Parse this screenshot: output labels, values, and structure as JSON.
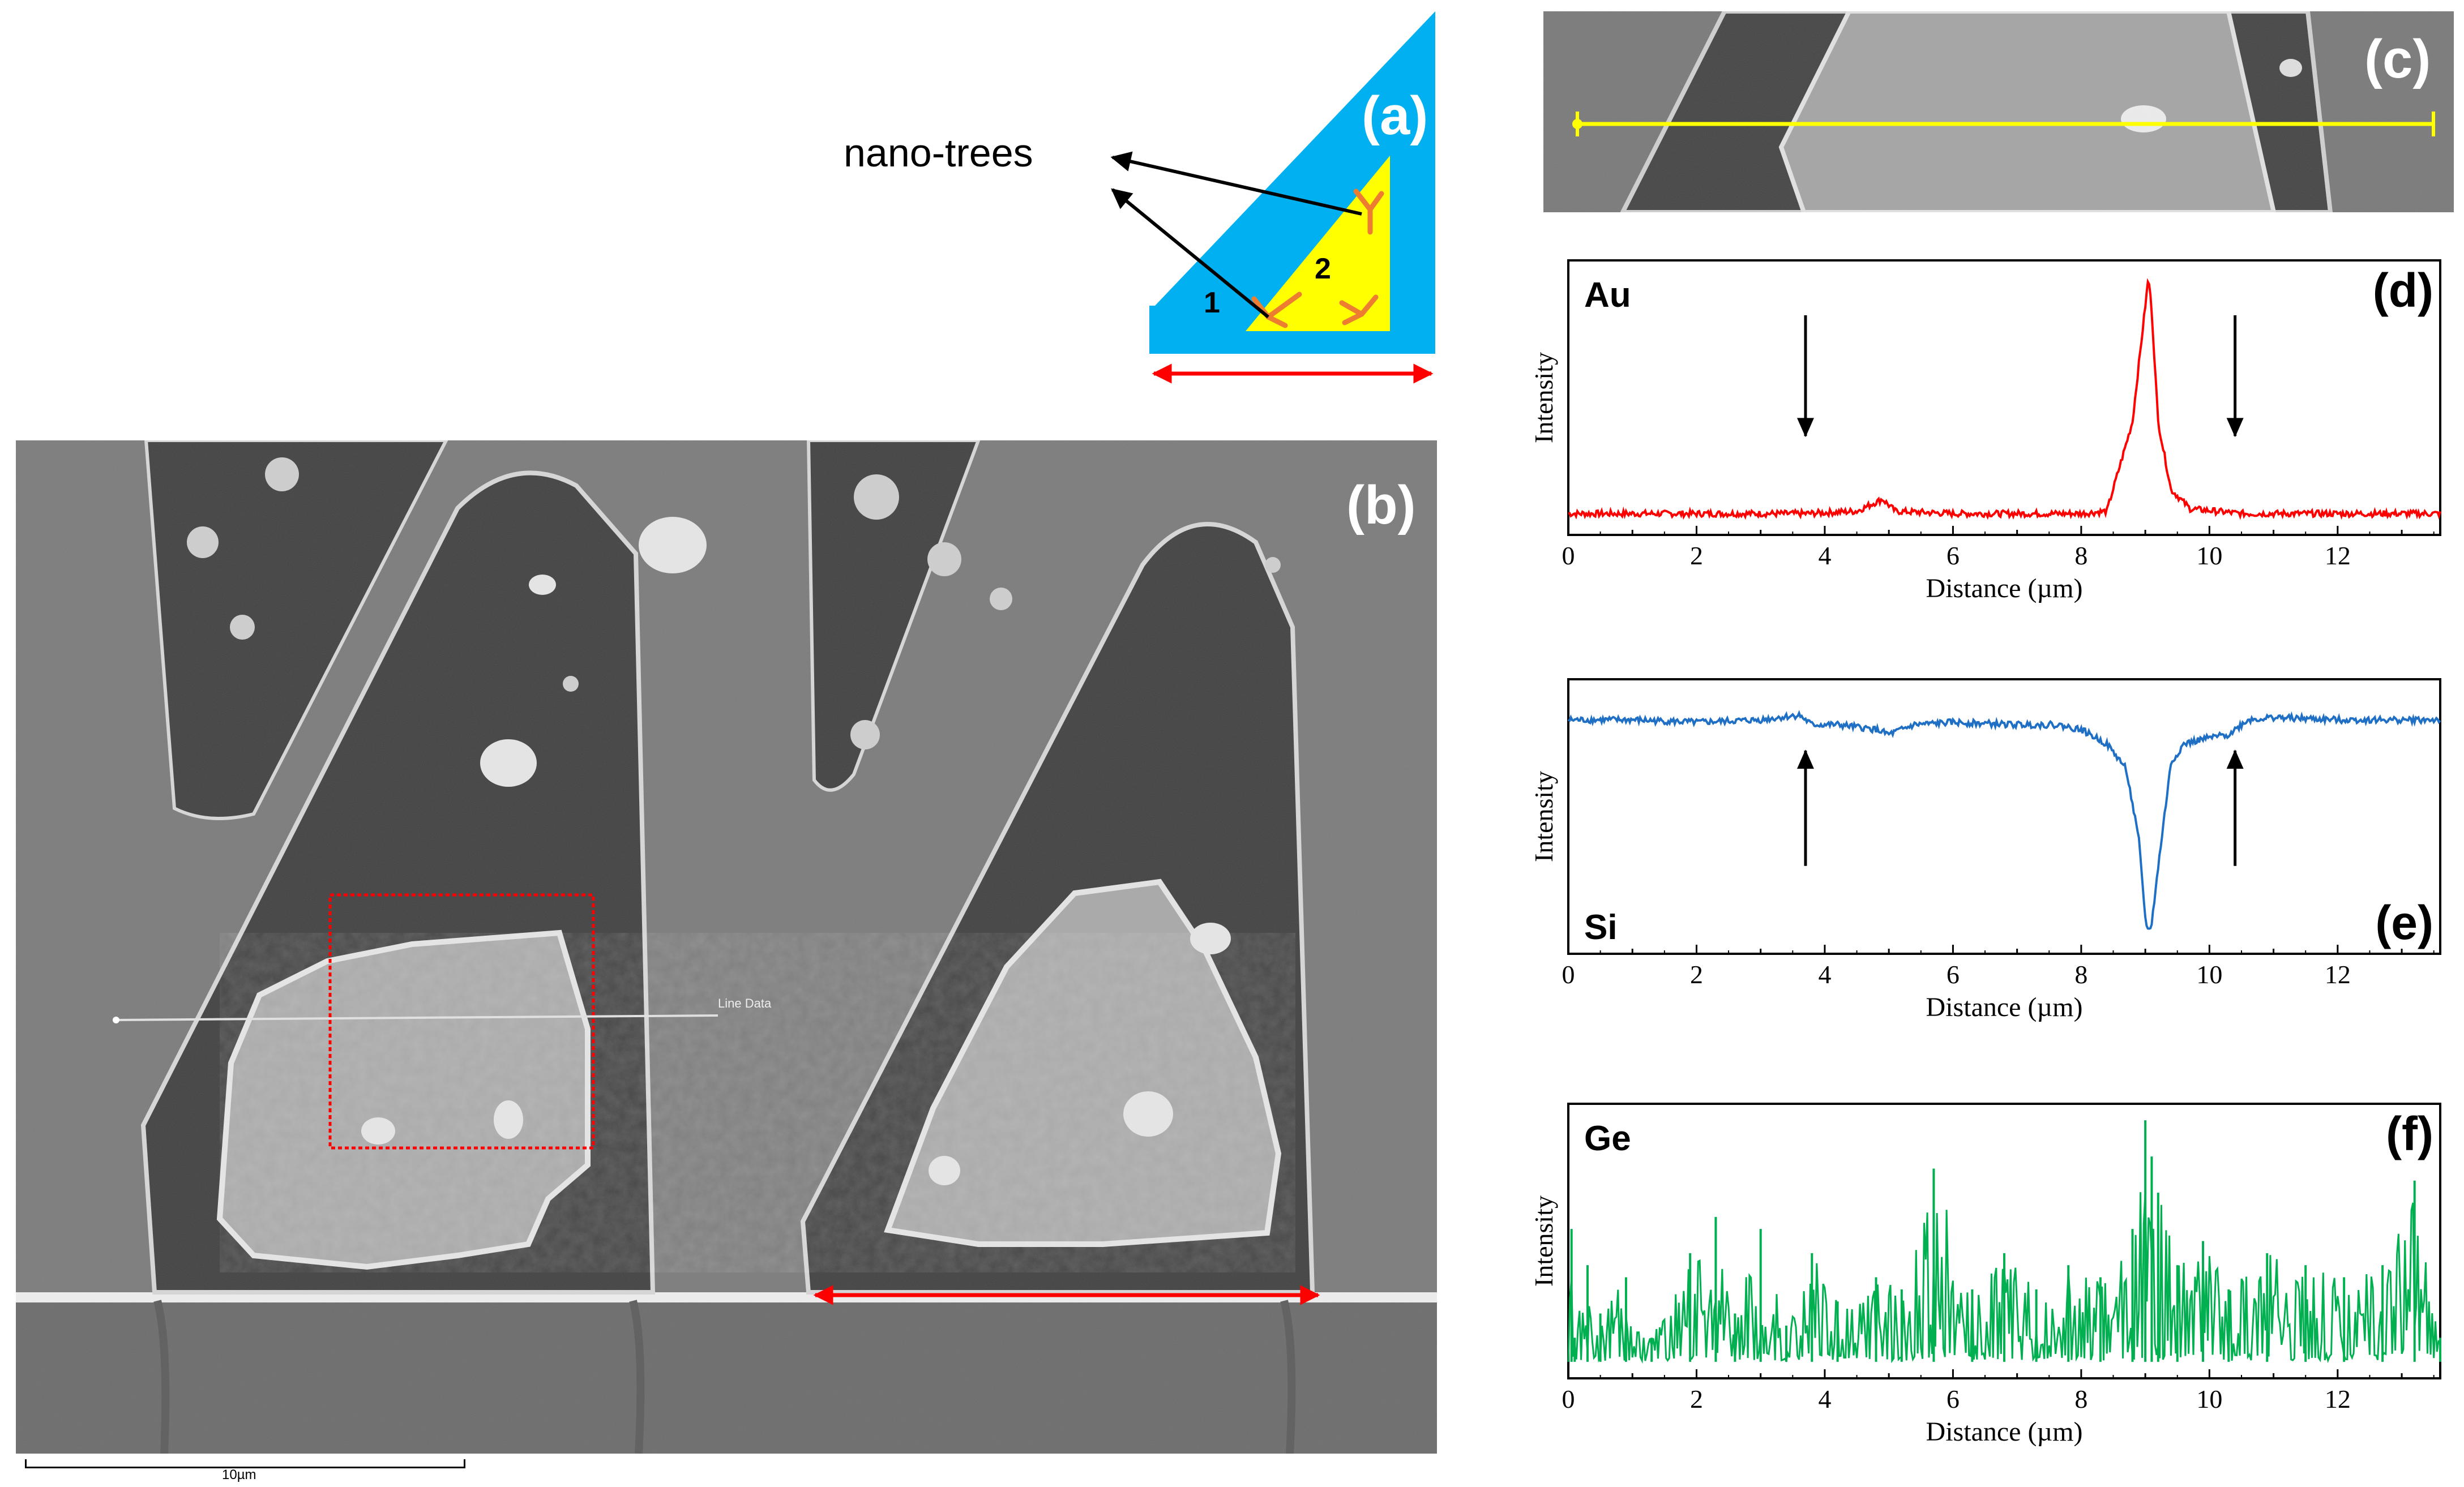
{
  "figure": {
    "panel_a": {
      "letter": "(a)",
      "annotation": "nano-trees",
      "region_1": "1",
      "region_2": "2",
      "colors": {
        "substrate": "#00b0f0",
        "gold": "#ffff00",
        "tree": "#ed7d31",
        "arrow": "#ff0000"
      }
    },
    "panel_b": {
      "letter": "(b)",
      "line_label": "Line Data",
      "scale_bar": "10µm",
      "colors": {
        "box": "#ff0000",
        "arrow": "#ff0000"
      }
    },
    "panel_c": {
      "letter": "(c)",
      "colors": {
        "line": "#ffff00"
      }
    }
  },
  "chart_data": [
    {
      "id": "d",
      "type": "line",
      "panel_label": "(d)",
      "element": "Au",
      "xlabel": "Distance (µm)",
      "ylabel": "Intensity",
      "xlim": [
        0,
        13.6
      ],
      "ylim": [
        0,
        100
      ],
      "xticks": [
        "0",
        "2",
        "4",
        "6",
        "8",
        "10",
        "12"
      ],
      "color": "#ff0000",
      "series": [
        {
          "name": "Au",
          "x": [
            0,
            1,
            2,
            3,
            3.7,
            4.5,
            4.9,
            5.1,
            6,
            7,
            8,
            8.4,
            8.8,
            9.0,
            9.05,
            9.1,
            9.2,
            9.4,
            9.7,
            10.5,
            12,
            13.6
          ],
          "y": [
            2,
            2,
            2,
            2,
            2,
            3,
            8,
            3,
            2,
            2,
            2,
            3,
            40,
            88,
            100,
            86,
            40,
            12,
            4,
            2,
            2,
            2
          ]
        }
      ],
      "annotations": [
        {
          "x": 3.7,
          "dir": "down"
        },
        {
          "x": 10.4,
          "dir": "down"
        }
      ]
    },
    {
      "id": "e",
      "type": "line",
      "panel_label": "(e)",
      "element": "Si",
      "xlabel": "Distance (µm)",
      "ylabel": "Intensity",
      "xlim": [
        0,
        13.6
      ],
      "ylim": [
        0,
        100
      ],
      "xticks": [
        "0",
        "2",
        "4",
        "6",
        "8",
        "10",
        "12"
      ],
      "color": "#1f6fc5",
      "series": [
        {
          "name": "Si",
          "x": [
            0,
            1,
            2,
            3,
            3.6,
            3.8,
            4.2,
            4.8,
            5.0,
            5.4,
            6,
            7,
            7.6,
            8,
            8.4,
            8.7,
            8.9,
            9.0,
            9.05,
            9.1,
            9.25,
            9.4,
            9.6,
            9.9,
            10.3,
            10.6,
            11,
            12,
            13.6
          ],
          "y": [
            90,
            90,
            89,
            90,
            92,
            88,
            88,
            86,
            84,
            88,
            89,
            88,
            88,
            86,
            80,
            70,
            40,
            8,
            2,
            6,
            40,
            72,
            80,
            82,
            84,
            90,
            91,
            90,
            90
          ]
        }
      ],
      "annotations": [
        {
          "x": 3.7,
          "dir": "up"
        },
        {
          "x": 10.4,
          "dir": "up"
        }
      ]
    },
    {
      "id": "f",
      "type": "line",
      "panel_label": "(f)",
      "element": "Ge",
      "xlabel": "Distance (µm)",
      "ylabel": "Intensity",
      "xlim": [
        0,
        13.6
      ],
      "ylim": [
        0,
        100
      ],
      "xticks": [
        "0",
        "2",
        "4",
        "6",
        "8",
        "10",
        "12"
      ],
      "color": "#00b050",
      "series": [
        {
          "name": "Ge",
          "x": [
            0,
            0.05,
            0.1,
            0.3,
            0.5,
            0.9,
            1.3,
            1.9,
            2.3,
            2.6,
            3.0,
            3.4,
            3.8,
            4.2,
            4.8,
            5.2,
            5.7,
            6.3,
            6.8,
            7.3,
            7.8,
            8.3,
            8.8,
            9.0,
            9.1,
            9.2,
            9.5,
            9.9,
            10.3,
            10.9,
            11.5,
            12.1,
            12.7,
            13.2,
            13.6
          ],
          "y": [
            0,
            55,
            10,
            40,
            20,
            35,
            10,
            45,
            60,
            20,
            55,
            15,
            45,
            25,
            35,
            30,
            80,
            30,
            45,
            30,
            40,
            35,
            55,
            100,
            85,
            70,
            40,
            50,
            30,
            45,
            40,
            35,
            40,
            75,
            10
          ]
        }
      ]
    }
  ]
}
